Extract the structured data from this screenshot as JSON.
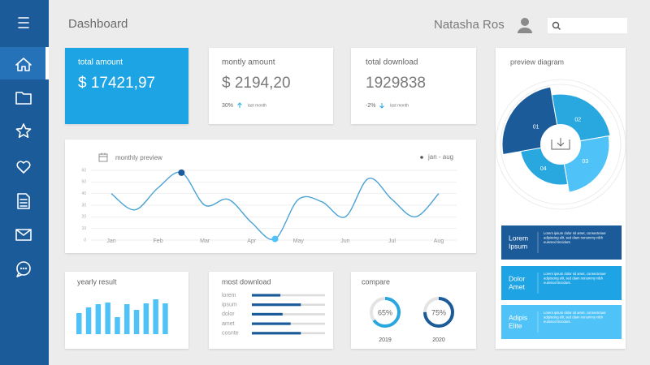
{
  "header": {
    "title": "Dashboard",
    "user": "Natasha Ros"
  },
  "cards": [
    {
      "label": "total amount",
      "value": "$ 17421,97"
    },
    {
      "label": "montly amount",
      "value": "$ 2194,20",
      "change": "30%",
      "note": "last month"
    },
    {
      "label": "total download",
      "value": "1929838",
      "change": "-2%",
      "note": "last month"
    }
  ],
  "side_list": [
    {
      "title": [
        "Lorem",
        "Ipsum"
      ],
      "text": [
        "Lorem ipsum dolor sit amet, consectetuer",
        "adipiscing elit, sed diam nonummy nibh",
        "euismod tincidunt."
      ]
    },
    {
      "title": [
        "Dolor",
        "Amet"
      ],
      "text": [
        "Lorem ipsum dolor sit amet, consectetuer",
        "adipiscing elit, sed diam nonummy nibh",
        "euismod tincidunt."
      ]
    },
    {
      "title": [
        "Adipis",
        "Elite"
      ],
      "text": [
        "Lorem ipsum dolor sit amet, consectetuer",
        "adipiscing elit, sed diam nonummy nibh",
        "euismod tincidunt."
      ]
    }
  ],
  "chart_data": [
    {
      "type": "line",
      "title": "monthly preview",
      "categories": [
        "Jan",
        null,
        "Feb",
        null,
        "Mar",
        null,
        "Apr",
        null,
        "May",
        null,
        "Jun",
        null,
        "Jul",
        null,
        "Aug"
      ],
      "series": [
        {
          "name": "jan - aug",
          "color": "#4aa3d6",
          "values": [
            40,
            26,
            45,
            58,
            30,
            35,
            15,
            1,
            35,
            33,
            20,
            53,
            35,
            20,
            40
          ]
        }
      ],
      "highlight": [
        {
          "index": 3,
          "color": "#1b5b9a"
        },
        {
          "index": 7,
          "color": "#4fc3f7"
        }
      ],
      "ylim": [
        0,
        60
      ],
      "yticks": [
        0,
        10,
        20,
        30,
        40,
        50,
        60
      ],
      "grid": true
    },
    {
      "type": "bar",
      "title": "yearly result",
      "color": "#4fc3f7",
      "values": [
        26,
        33,
        37,
        39,
        21,
        37,
        30,
        38,
        43,
        38
      ]
    },
    {
      "type": "hbar",
      "title": "most download",
      "categories": [
        "lorem",
        "ipsum",
        "dolor",
        "amet",
        "cosnte"
      ],
      "values": [
        39,
        67,
        42,
        53,
        67
      ],
      "xlim": [
        0,
        100
      ],
      "color": "#1b5b9a",
      "track_color": "#dcdcdc"
    },
    {
      "type": "donut",
      "title": "compare",
      "categories": [
        "2019",
        "2020"
      ],
      "values": [
        65,
        75
      ],
      "value_labels": [
        "65%",
        "75%"
      ],
      "ylim": [
        0,
        100
      ],
      "colors": [
        "#29a8e0",
        "#1b5b9a"
      ]
    },
    {
      "type": "polar",
      "title": "preview diagram",
      "categories": [
        "01",
        "02",
        "03",
        "04"
      ],
      "values": [
        72,
        62,
        60,
        50
      ],
      "colors": [
        "#1b5b9a",
        "#29a8e0",
        "#4fc3f7",
        "#29a8e0"
      ]
    }
  ]
}
